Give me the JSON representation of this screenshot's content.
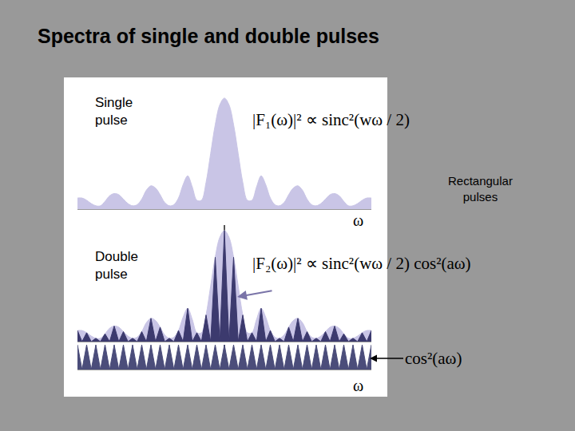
{
  "title": "Spectra of single and double pulses",
  "side_label": "Rectangular pulses",
  "chart_data": [
    {
      "type": "area",
      "label": "Single pulse",
      "annotation": "|F₁(ω)|² ∝ sinc²(wω / 2)",
      "x_label": "ω",
      "x": [
        -4,
        -3.875,
        -3.75,
        -3.625,
        -3.5,
        -3.375,
        -3.25,
        -3.125,
        -3,
        -2.875,
        -2.75,
        -2.625,
        -2.5,
        -2.375,
        -2.25,
        -2.125,
        -2,
        -1.875,
        -1.75,
        -1.625,
        -1.5,
        -1.375,
        -1.25,
        -1.125,
        -1,
        -0.875,
        -0.75,
        -0.625,
        -0.5,
        -0.375,
        -0.25,
        -0.125,
        0,
        0.125,
        0.25,
        0.375,
        0.5,
        0.625,
        0.75,
        0.875,
        1,
        1.125,
        1.25,
        1.375,
        1.5,
        1.625,
        1.75,
        1.875,
        2,
        2.125,
        2.25,
        2.375,
        2.5,
        2.625,
        2.75,
        2.875,
        3,
        3.125,
        3.25,
        3.375,
        3.5,
        3.625,
        3.75,
        3.875,
        4
      ],
      "values": [
        0.1,
        0.1,
        0.08,
        0.05,
        0.03,
        0.03,
        0.07,
        0.12,
        0.14,
        0.13,
        0.09,
        0.05,
        0.03,
        0.04,
        0.09,
        0.17,
        0.21,
        0.19,
        0.13,
        0.06,
        0.03,
        0.04,
        0.1,
        0.22,
        0.3,
        0.2,
        0.08,
        0.08,
        0.24,
        0.5,
        0.76,
        0.94,
        1.0,
        0.94,
        0.76,
        0.5,
        0.24,
        0.08,
        0.08,
        0.2,
        0.3,
        0.22,
        0.1,
        0.04,
        0.03,
        0.06,
        0.13,
        0.19,
        0.21,
        0.17,
        0.09,
        0.04,
        0.03,
        0.05,
        0.09,
        0.13,
        0.14,
        0.12,
        0.07,
        0.03,
        0.03,
        0.05,
        0.08,
        0.1,
        0.1
      ],
      "color": "#c9c5e6",
      "line_style": "smooth",
      "xlim": [
        -4,
        4
      ],
      "ylim": [
        0,
        1.05
      ],
      "tick_labels": false,
      "grid": false
    },
    {
      "type": "area",
      "label": "Double pulse",
      "annotation": "|F₂(ω)|² ∝ sinc²(wω / 2) cos²(aω)",
      "x": [
        -4,
        -3.875,
        -3.75,
        -3.625,
        -3.5,
        -3.375,
        -3.25,
        -3.125,
        -3,
        -2.875,
        -2.75,
        -2.625,
        -2.5,
        -2.375,
        -2.25,
        -2.125,
        -2,
        -1.875,
        -1.75,
        -1.625,
        -1.5,
        -1.375,
        -1.25,
        -1.125,
        -1,
        -0.875,
        -0.75,
        -0.625,
        -0.5,
        -0.375,
        -0.25,
        -0.125,
        0,
        0.125,
        0.25,
        0.375,
        0.5,
        0.625,
        0.75,
        0.875,
        1,
        1.125,
        1.25,
        1.375,
        1.5,
        1.625,
        1.75,
        1.875,
        2,
        2.125,
        2.25,
        2.375,
        2.5,
        2.625,
        2.75,
        2.875,
        3,
        3.125,
        3.25,
        3.375,
        3.5,
        3.625,
        3.75,
        3.875,
        4
      ],
      "series": [
        {
          "color": "#c9c5e6",
          "line_style": "smooth",
          "values": [
            0.1,
            0.1,
            0.08,
            0.05,
            0.03,
            0.03,
            0.07,
            0.12,
            0.14,
            0.13,
            0.09,
            0.05,
            0.03,
            0.04,
            0.09,
            0.17,
            0.21,
            0.19,
            0.13,
            0.06,
            0.03,
            0.04,
            0.1,
            0.22,
            0.3,
            0.2,
            0.08,
            0.08,
            0.24,
            0.5,
            0.76,
            0.94,
            1.0,
            0.94,
            0.76,
            0.5,
            0.24,
            0.08,
            0.08,
            0.2,
            0.3,
            0.22,
            0.1,
            0.04,
            0.03,
            0.06,
            0.13,
            0.19,
            0.21,
            0.17,
            0.09,
            0.04,
            0.03,
            0.05,
            0.09,
            0.13,
            0.14,
            0.12,
            0.07,
            0.03,
            0.03,
            0.05,
            0.08,
            0.1,
            0.1
          ]
        },
        {
          "color": "#3c3a6e",
          "line_style": "solid",
          "values": [
            0.1,
            0,
            0.08,
            0,
            0.03,
            0,
            0.07,
            0,
            0.14,
            0,
            0.09,
            0,
            0.03,
            0,
            0.09,
            0,
            0.21,
            0,
            0.13,
            0,
            0.03,
            0,
            0.1,
            0,
            0.3,
            0,
            0.08,
            0,
            0.24,
            0,
            0.76,
            0,
            1.0,
            0,
            0.76,
            0,
            0.24,
            0,
            0.08,
            0,
            0.3,
            0,
            0.1,
            0,
            0.03,
            0,
            0.13,
            0,
            0.21,
            0,
            0.09,
            0,
            0.03,
            0,
            0.09,
            0,
            0.14,
            0,
            0.07,
            0,
            0.03,
            0,
            0.08,
            0,
            0.1
          ]
        }
      ],
      "xlim": [
        -4,
        4
      ],
      "ylim": [
        0,
        1.05
      ],
      "tick_labels": false,
      "grid": false
    },
    {
      "type": "area",
      "annotation": "cos²(aω)",
      "x_label": "ω",
      "x": [
        -4,
        -3.875,
        -3.75,
        -3.625,
        -3.5,
        -3.375,
        -3.25,
        -3.125,
        -3,
        -2.875,
        -2.75,
        -2.625,
        -2.5,
        -2.375,
        -2.25,
        -2.125,
        -2,
        -1.875,
        -1.75,
        -1.625,
        -1.5,
        -1.375,
        -1.25,
        -1.125,
        -1,
        -0.875,
        -0.75,
        -0.625,
        -0.5,
        -0.375,
        -0.25,
        -0.125,
        0,
        0.125,
        0.25,
        0.375,
        0.5,
        0.625,
        0.75,
        0.875,
        1,
        1.125,
        1.25,
        1.375,
        1.5,
        1.625,
        1.75,
        1.875,
        2,
        2.125,
        2.25,
        2.375,
        2.5,
        2.625,
        2.75,
        2.875,
        3,
        3.125,
        3.25,
        3.375,
        3.5,
        3.625,
        3.75,
        3.875,
        4
      ],
      "values": [
        1,
        0,
        1,
        0,
        1,
        0,
        1,
        0,
        1,
        0,
        1,
        0,
        1,
        0,
        1,
        0,
        1,
        0,
        1,
        0,
        1,
        0,
        1,
        0,
        1,
        0,
        1,
        0,
        1,
        0,
        1,
        0,
        1,
        0,
        1,
        0,
        1,
        0,
        1,
        0,
        1,
        0,
        1,
        0,
        1,
        0,
        1,
        0,
        1,
        0,
        1,
        0,
        1,
        0,
        1,
        0,
        1,
        0,
        1,
        0,
        1,
        0,
        1,
        0,
        1
      ],
      "color": "#4b4d7a",
      "line_style": "solid",
      "xlim": [
        -4,
        4
      ],
      "ylim": [
        0,
        1
      ],
      "tick_labels": false,
      "grid": false
    }
  ]
}
